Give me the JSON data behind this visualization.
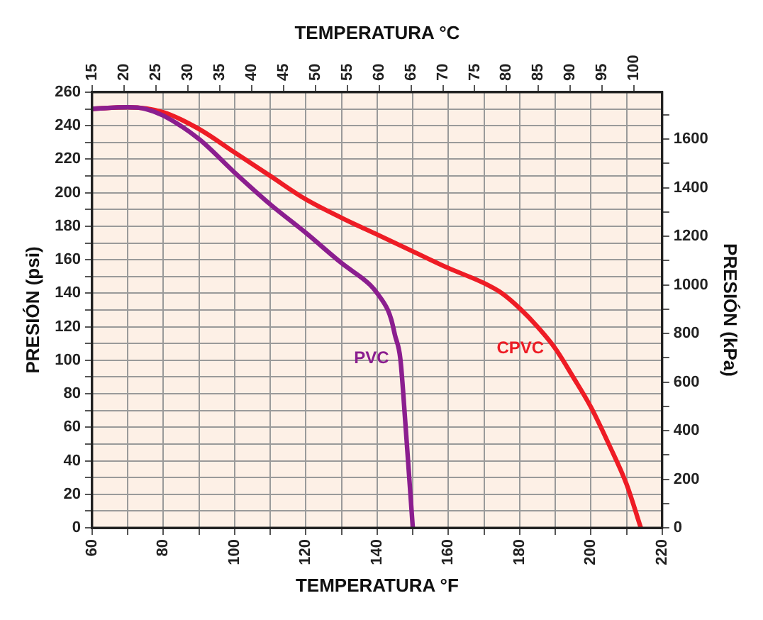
{
  "chart_data": {
    "type": "line",
    "xlabel": "TEMPERATURA °F",
    "x2label": "TEMPERATURA °C",
    "ylabel": "PRESIÓN (psi)",
    "y2label": "PRESIÓN (kPa)",
    "xlim": [
      60,
      220
    ],
    "xticks": [
      60,
      {
        "value": 70,
        "label": null
      },
      80,
      {
        "value": 90,
        "label": null
      },
      100,
      {
        "value": 110,
        "label": null
      },
      120,
      {
        "value": 130,
        "label": null
      },
      140,
      {
        "value": 150,
        "label": null
      },
      160,
      {
        "value": 170,
        "label": null
      },
      180,
      {
        "value": 190,
        "label": null
      },
      200,
      {
        "value": 210,
        "label": null
      },
      220
    ],
    "x2lim": [
      15,
      104.4
    ],
    "x2ticks": [
      15,
      20,
      25,
      30,
      35,
      40,
      45,
      50,
      55,
      60,
      65,
      70,
      75,
      80,
      85,
      90,
      95,
      100
    ],
    "ylim": [
      0,
      260
    ],
    "yticks": [
      0,
      {
        "value": 10,
        "label": null
      },
      20,
      {
        "value": 30,
        "label": null
      },
      40,
      {
        "value": 50,
        "label": null
      },
      60,
      {
        "value": 70,
        "label": null
      },
      80,
      {
        "value": 90,
        "label": null
      },
      100,
      {
        "value": 110,
        "label": null
      },
      120,
      {
        "value": 130,
        "label": null
      },
      140,
      {
        "value": 150,
        "label": null
      },
      160,
      {
        "value": 170,
        "label": null
      },
      180,
      {
        "value": 190,
        "label": null
      },
      200,
      {
        "value": 210,
        "label": null
      },
      220,
      {
        "value": 230,
        "label": null
      },
      240,
      {
        "value": 250,
        "label": null
      },
      260
    ],
    "y2lim": [
      0,
      1793
    ],
    "y2ticks": [
      0,
      {
        "value": 100,
        "label": null
      },
      200,
      {
        "value": 300,
        "label": null
      },
      400,
      {
        "value": 500,
        "label": null
      },
      600,
      {
        "value": 700,
        "label": null
      },
      800,
      {
        "value": 900,
        "label": null
      },
      1000,
      {
        "value": 1100,
        "label": null
      },
      1200,
      {
        "value": 1300,
        "label": null
      },
      1400,
      {
        "value": 1500,
        "label": null
      },
      1600,
      {
        "value": 1700,
        "label": null
      }
    ],
    "grid": true,
    "legend": false,
    "marker": "none",
    "line_style": "solid",
    "series": [
      {
        "name": "PVC",
        "color": "#8b1e8f",
        "x": [
          60,
          70,
          75,
          80,
          90,
          100,
          110,
          120,
          130,
          138,
          140,
          143,
          144,
          145,
          146.5,
          148,
          150
        ],
        "values": [
          250,
          251,
          250,
          246,
          232,
          212,
          193,
          176,
          158,
          145,
          140,
          130,
          124,
          115,
          101,
          60,
          0
        ]
      },
      {
        "name": "CPVC",
        "color": "#ee1c25",
        "x": [
          60,
          70,
          80,
          90,
          100,
          110,
          120,
          130,
          140,
          150,
          160,
          170,
          175,
          180,
          185,
          190,
          195,
          200,
          205,
          210,
          214
        ],
        "values": [
          250,
          251,
          248,
          238,
          224,
          210,
          196,
          185,
          175,
          165,
          155,
          146,
          140,
          131,
          120,
          107,
          90,
          72,
          50,
          26,
          0
        ]
      }
    ]
  }
}
